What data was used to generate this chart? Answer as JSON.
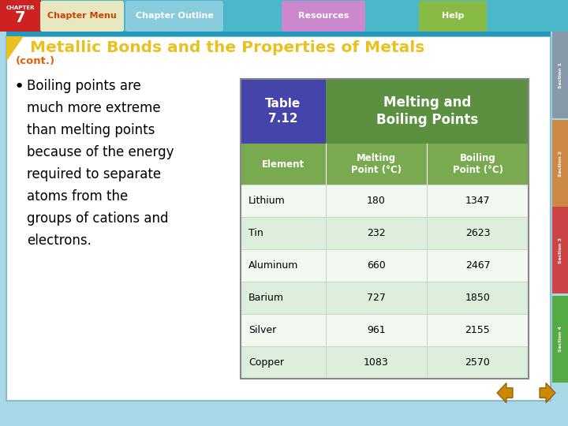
{
  "title": "Metallic Bonds and the Properties of Metals",
  "subtitle": "(cont.)",
  "bullet_lines": [
    "Boiling points are",
    "much more extreme",
    "than melting points",
    "because of the energy",
    "required to separate",
    "atoms from the",
    "groups of cations and",
    "electrons."
  ],
  "col_headers": [
    "Element",
    "Melting\nPoint (°C)",
    "Boiling\nPoint (°C)"
  ],
  "table_data": [
    [
      "Lithium",
      "180",
      "1347"
    ],
    [
      "Tin",
      "232",
      "2623"
    ],
    [
      "Aluminum",
      "660",
      "2467"
    ],
    [
      "Barium",
      "727",
      "1850"
    ],
    [
      "Silver",
      "961",
      "2155"
    ],
    [
      "Copper",
      "1083",
      "2570"
    ]
  ],
  "bg_color": "#a8d8e8",
  "slide_bg": "#ffffff",
  "top_bar_color": "#4ab8c8",
  "title_color": "#e8c020",
  "subtitle_color": "#e06010",
  "table_header_bg": "#4444aa",
  "table_header_text": "#ffffff",
  "table_green_bg": "#5a9040",
  "table_col_header_bg": "#7aaa50",
  "table_row_bg_even": "#ddeedd",
  "table_row_bg_odd": "#f0f8f0",
  "table_border_color": "#aaaaaa",
  "nav_arrow_color": "#cc8800",
  "chapter_bg": "#cc2222",
  "nav_bar_bg": "#4ab8c8",
  "btn_menu_bg": "#e8e8c0",
  "btn_menu_fg": "#cc4400",
  "btn_outline_bg": "#88ccdd",
  "btn_outline_fg": "#ffffff",
  "btn_resources_bg": "#cc88cc",
  "btn_resources_fg": "#ffffff",
  "btn_help_bg": "#88bb44",
  "btn_help_fg": "#ffffff",
  "tab1_bg": "#8899aa",
  "tab2_bg": "#cc8844",
  "tab3_bg": "#cc4444",
  "tab4_bg": "#55aa44"
}
